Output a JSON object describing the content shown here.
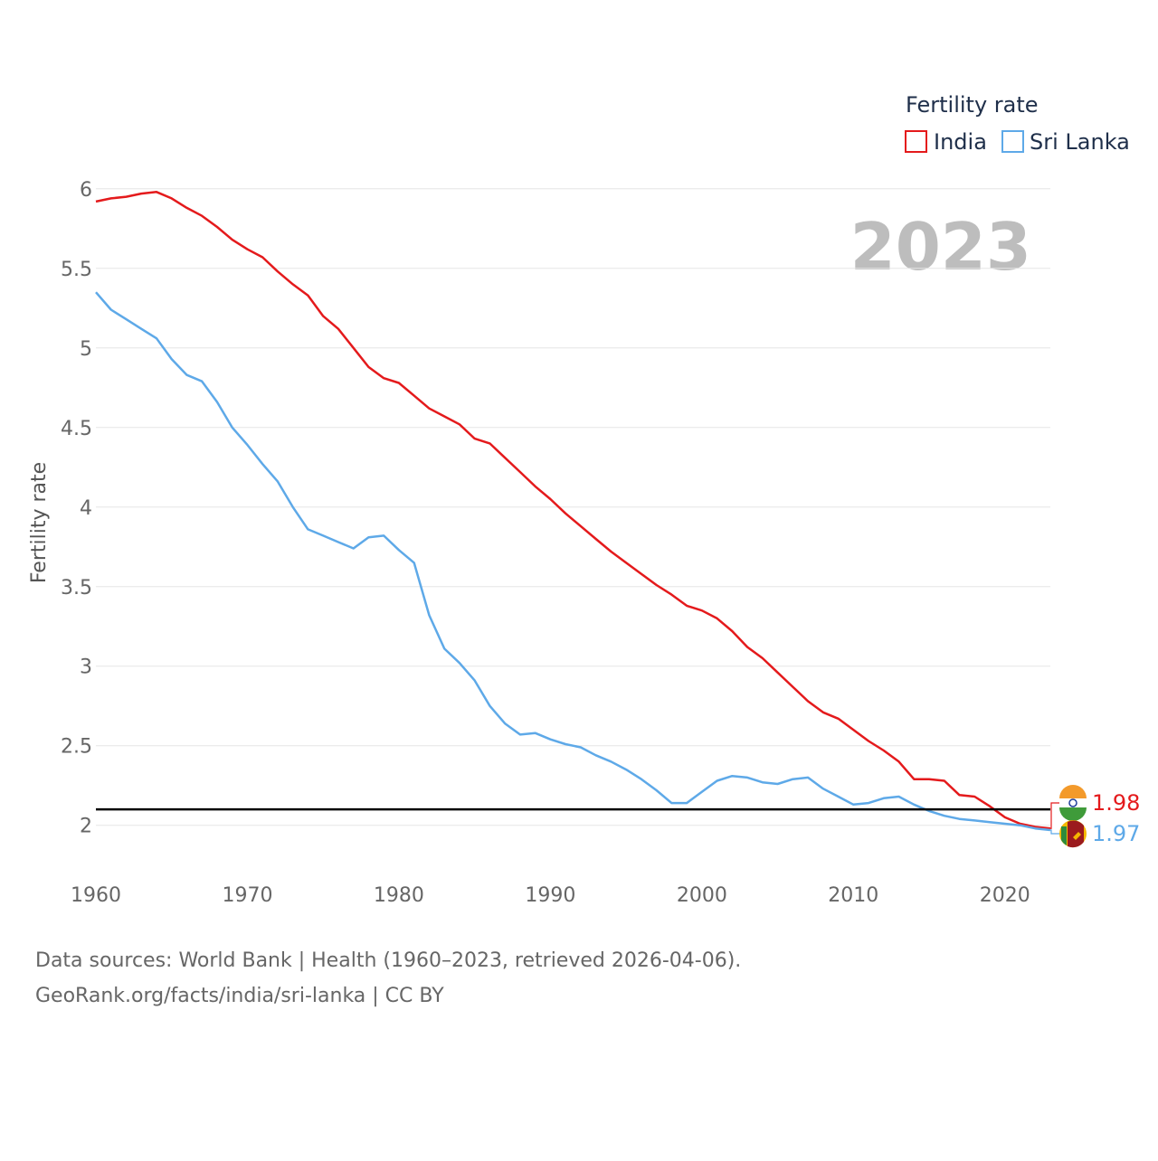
{
  "legend": {
    "title": "Fertility rate",
    "items": [
      {
        "label": "India",
        "color": "#e41a1c"
      },
      {
        "label": "Sri Lanka",
        "color": "#5ea9e8"
      }
    ]
  },
  "year_label": "2023",
  "source": {
    "line1": "Data sources: World Bank | Health (1960–2023, retrieved 2026-04-06).",
    "line2": "GeoRank.org/facts/india/sri-lanka | CC BY"
  },
  "chart_data": {
    "type": "line",
    "title": "Fertility rate",
    "xlabel": "",
    "ylabel": "Fertility rate",
    "xlim": [
      1960,
      2023
    ],
    "ylim": [
      1.72,
      6.05
    ],
    "yticks": [
      2,
      2.5,
      3,
      3.5,
      4,
      4.5,
      5,
      5.5,
      6
    ],
    "ytick_labels": [
      "2",
      "2.5",
      "3",
      "3.5",
      "4",
      "4.5",
      "5",
      "5.5",
      "6"
    ],
    "xticks": [
      1960,
      1970,
      1980,
      1990,
      2000,
      2010,
      2020
    ],
    "xtick_labels": [
      "1960",
      "1970",
      "1980",
      "1990",
      "2000",
      "2010",
      "2020"
    ],
    "grid": true,
    "reference_line": {
      "y": 2.1,
      "color": "#000000"
    },
    "x": [
      1960,
      1961,
      1962,
      1963,
      1964,
      1965,
      1966,
      1967,
      1968,
      1969,
      1970,
      1971,
      1972,
      1973,
      1974,
      1975,
      1976,
      1977,
      1978,
      1979,
      1980,
      1981,
      1982,
      1983,
      1984,
      1985,
      1986,
      1987,
      1988,
      1989,
      1990,
      1991,
      1992,
      1993,
      1994,
      1995,
      1996,
      1997,
      1998,
      1999,
      2000,
      2001,
      2002,
      2003,
      2004,
      2005,
      2006,
      2007,
      2008,
      2009,
      2010,
      2011,
      2012,
      2013,
      2014,
      2015,
      2016,
      2017,
      2018,
      2019,
      2020,
      2021,
      2022,
      2023
    ],
    "series": [
      {
        "name": "India",
        "color": "#e41a1c",
        "end_label": "1.98",
        "values": [
          5.92,
          5.94,
          5.95,
          5.97,
          5.98,
          5.94,
          5.88,
          5.83,
          5.76,
          5.68,
          5.62,
          5.57,
          5.48,
          5.4,
          5.33,
          5.2,
          5.12,
          5.0,
          4.88,
          4.81,
          4.78,
          4.7,
          4.62,
          4.57,
          4.52,
          4.43,
          4.4,
          4.31,
          4.22,
          4.13,
          4.05,
          3.96,
          3.88,
          3.8,
          3.72,
          3.65,
          3.58,
          3.51,
          3.45,
          3.38,
          3.35,
          3.3,
          3.22,
          3.12,
          3.05,
          2.96,
          2.87,
          2.78,
          2.71,
          2.67,
          2.6,
          2.53,
          2.47,
          2.4,
          2.29,
          2.29,
          2.28,
          2.19,
          2.18,
          2.12,
          2.05,
          2.01,
          1.99,
          1.98
        ]
      },
      {
        "name": "Sri Lanka",
        "color": "#5ea9e8",
        "end_label": "1.97",
        "values": [
          5.35,
          5.24,
          5.18,
          5.12,
          5.06,
          4.93,
          4.83,
          4.79,
          4.66,
          4.5,
          4.39,
          4.27,
          4.16,
          4.0,
          3.86,
          3.82,
          3.78,
          3.74,
          3.81,
          3.82,
          3.73,
          3.65,
          3.32,
          3.11,
          3.02,
          2.91,
          2.75,
          2.64,
          2.57,
          2.58,
          2.54,
          2.51,
          2.49,
          2.44,
          2.4,
          2.35,
          2.29,
          2.22,
          2.14,
          2.14,
          2.21,
          2.28,
          2.31,
          2.3,
          2.27,
          2.26,
          2.29,
          2.3,
          2.23,
          2.18,
          2.13,
          2.14,
          2.17,
          2.18,
          2.13,
          2.09,
          2.06,
          2.04,
          2.03,
          2.02,
          2.01,
          2.0,
          1.98,
          1.97
        ]
      }
    ]
  }
}
